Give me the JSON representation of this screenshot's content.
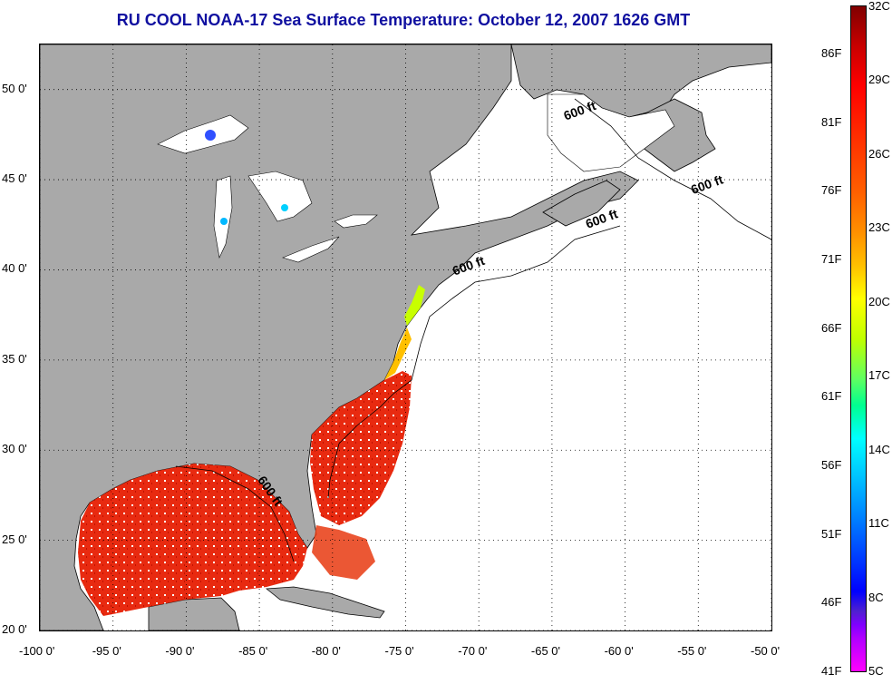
{
  "title": "RU COOL  NOAA-17  Sea Surface Temperature:  October 12, 2007 1626 GMT",
  "map": {
    "lon_range": [
      -100,
      -50
    ],
    "lat_range": [
      20,
      52.5
    ],
    "lon_ticks": [
      "-100 0'",
      "-95 0'",
      "-90 0'",
      "-85 0'",
      "-80 0'",
      "-75 0'",
      "-70 0'",
      "-65 0'",
      "-60 0'",
      "-55 0'",
      "-50 0'"
    ],
    "lat_ticks": [
      "50 0'",
      "45 0'",
      "40 0'",
      "35 0'",
      "30 0'",
      "25 0'",
      "20 0'"
    ],
    "grid": "dotted",
    "isobath_labels": [
      {
        "text": "600 ft",
        "lon": -63,
        "lat": 48.6
      },
      {
        "text": "600 ft",
        "lon": -54.3,
        "lat": 44.5
      },
      {
        "text": "600 ft",
        "lon": -61.5,
        "lat": 42.6
      },
      {
        "text": "600 ft",
        "lon": -70.6,
        "lat": 40
      },
      {
        "text": "600 ft",
        "lon": -84.5,
        "lat": 27.6
      }
    ],
    "colors": {
      "land": "#a9a9a9",
      "no_data": "#ffffff",
      "warm_water": "#e83010",
      "cool_water": "#00c8ff"
    }
  },
  "colorbar": {
    "range_c": [
      5,
      32
    ],
    "celsius_labels": [
      "32C",
      "29C",
      "26C",
      "23C",
      "20C",
      "17C",
      "14C",
      "11C",
      "8C",
      "5C"
    ],
    "fahrenheit_labels": [
      "86F",
      "81F",
      "76F",
      "71F",
      "66F",
      "61F",
      "56F",
      "51F",
      "46F",
      "41F"
    ]
  }
}
